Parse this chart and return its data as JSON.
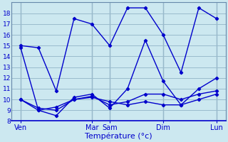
{
  "title": "Température (°c)",
  "background_color": "#cce8f0",
  "line_color": "#0000cc",
  "grid_color": "#99bbcc",
  "vline_color": "#6688aa",
  "ylim": [
    8,
    19
  ],
  "yticks": [
    8,
    9,
    10,
    11,
    12,
    13,
    14,
    15,
    16,
    17,
    18
  ],
  "day_positions": [
    0,
    4,
    5,
    8,
    11
  ],
  "day_labels": [
    "Ven",
    "Mar",
    "Sam",
    "Dim",
    "Lun"
  ],
  "xlim": [
    -0.5,
    11.5
  ],
  "series": [
    {
      "x": [
        0,
        1,
        2,
        3,
        4,
        5,
        6,
        7,
        8,
        9,
        10,
        11
      ],
      "y": [
        15.0,
        14.8,
        10.8,
        17.5,
        17.0,
        15.0,
        18.5,
        18.5,
        16.0,
        12.5,
        18.5,
        17.5
      ]
    },
    {
      "x": [
        0,
        1,
        2,
        3,
        4,
        5,
        6,
        7,
        8,
        9,
        10,
        11
      ],
      "y": [
        14.8,
        9.0,
        8.5,
        10.2,
        10.5,
        9.2,
        11.0,
        15.5,
        11.7,
        9.5,
        11.0,
        12.0
      ]
    },
    {
      "x": [
        0,
        1,
        2,
        3,
        4,
        5,
        6,
        7,
        8,
        9,
        10,
        11
      ],
      "y": [
        10.0,
        9.2,
        9.0,
        10.0,
        10.3,
        9.5,
        9.8,
        10.5,
        10.5,
        10.0,
        10.5,
        10.8
      ]
    },
    {
      "x": [
        0,
        1,
        2,
        3,
        4,
        5,
        6,
        7,
        8,
        9,
        10,
        11
      ],
      "y": [
        10.0,
        9.0,
        9.3,
        10.0,
        10.2,
        9.8,
        9.5,
        9.8,
        9.5,
        9.5,
        10.0,
        10.5
      ]
    }
  ]
}
